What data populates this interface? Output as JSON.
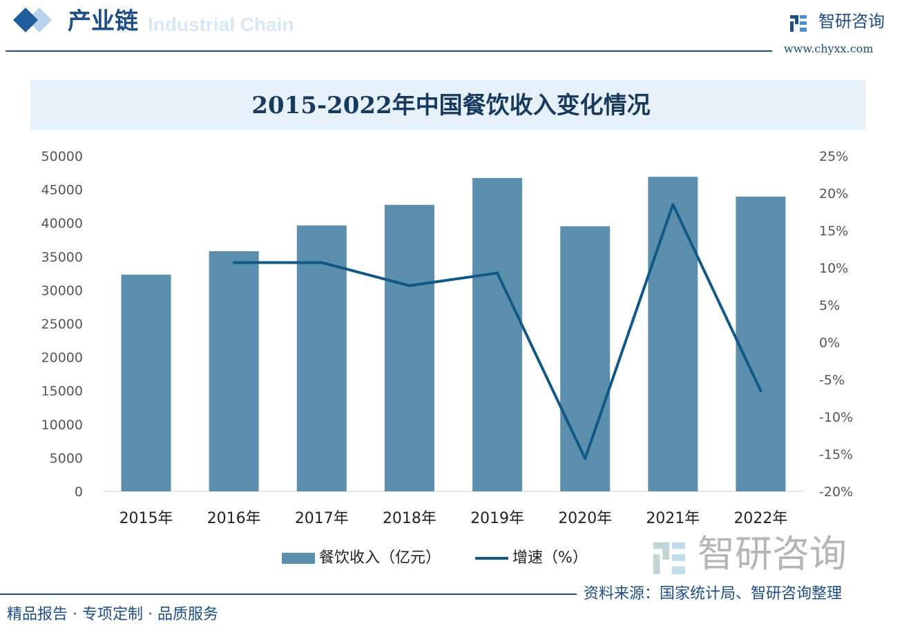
{
  "header": {
    "section_title": "产业链",
    "section_subtitle": "Industrial Chain",
    "brand_name": "智研咨询",
    "brand_url": "www.chyxx.com"
  },
  "footer": {
    "source": "资料来源：国家统计局、智研咨询整理",
    "slogan": "精品报告 · 专项定制 · 品质服务"
  },
  "watermark": {
    "text": "智研咨询"
  },
  "colors": {
    "bar": "#5b8fad",
    "line": "#125886",
    "title_band": "#e6f0f9"
  },
  "chart_data": {
    "type": "bar+line",
    "title": "2015-2022年中国餐饮收入变化情况",
    "categories": [
      "2015年",
      "2016年",
      "2017年",
      "2018年",
      "2019年",
      "2020年",
      "2021年",
      "2022年"
    ],
    "series": [
      {
        "name": "餐饮收入（亿元）",
        "type": "bar",
        "axis": "left",
        "values": [
          32310,
          35799,
          39644,
          42716,
          46721,
          39527,
          46895,
          43941
        ]
      },
      {
        "name": "增速（%）",
        "type": "line",
        "axis": "right",
        "values": [
          null,
          10.7,
          10.7,
          7.6,
          9.3,
          -15.6,
          18.5,
          -6.5
        ]
      }
    ],
    "left_axis": {
      "ylim": [
        0,
        50000
      ],
      "ticks": [
        "0",
        "5000",
        "10000",
        "15000",
        "20000",
        "25000",
        "30000",
        "35000",
        "40000",
        "45000",
        "50000"
      ]
    },
    "right_axis": {
      "ylim": [
        -20,
        25
      ],
      "ticks": [
        "-20%",
        "-15%",
        "-10%",
        "-5%",
        "0%",
        "5%",
        "10%",
        "15%",
        "20%",
        "25%"
      ]
    },
    "grid": false,
    "legend": "bottom"
  }
}
